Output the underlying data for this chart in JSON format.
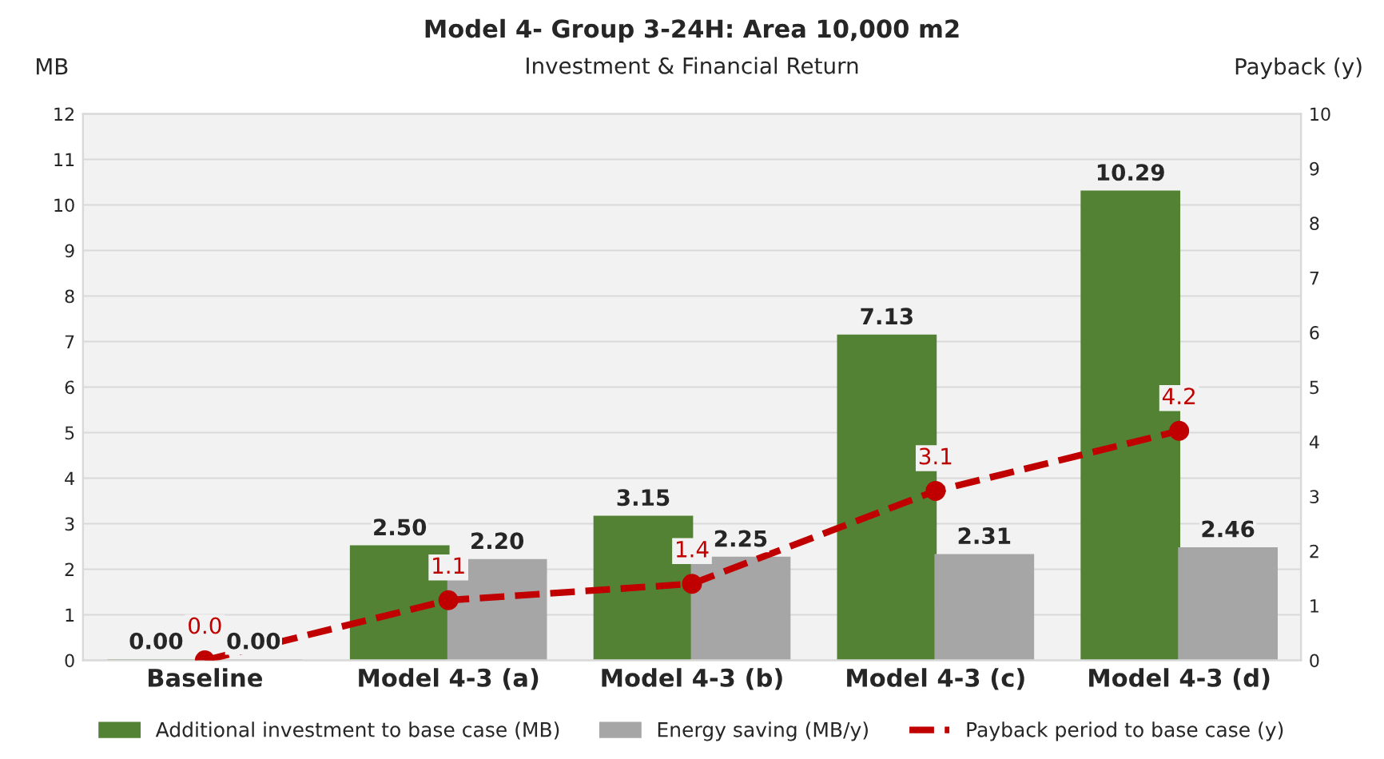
{
  "chart_data": {
    "type": "bar",
    "title": "Model 4- Group 3-24H: Area 10,000 m2",
    "subtitle": "Investment & Financial Return",
    "ylabel": "MB",
    "y2label": "Payback (y)",
    "categories": [
      "Baseline",
      "Model 4-3 (a)",
      "Model 4-3 (b)",
      "Model 4-3 (c)",
      "Model 4-3 (d)"
    ],
    "series": [
      {
        "name": "Additional investment to base case (MB)",
        "color": "#548235",
        "values": [
          0.0,
          2.5,
          3.15,
          7.13,
          10.29
        ],
        "value_labels": [
          "0.00",
          "2.50",
          "3.15",
          "7.13",
          "10.29"
        ]
      },
      {
        "name": "Energy saving (MB/y)",
        "color": "#a6a6a6",
        "values": [
          0.0,
          2.2,
          2.25,
          2.31,
          2.46
        ],
        "value_labels": [
          "0.00",
          "2.20",
          "2.25",
          "2.31",
          "2.46"
        ]
      },
      {
        "name": "Payback period to base case (y)",
        "type": "line",
        "axis": "y2",
        "color": "#c00000",
        "marker": "circle",
        "line_style": "dashed",
        "values": [
          0.0,
          1.1,
          1.4,
          3.1,
          4.2
        ],
        "value_labels": [
          "0.0",
          "1.1",
          "1.4",
          "3.1",
          "4.2"
        ]
      }
    ],
    "ylim": [
      0,
      12
    ],
    "yticks": [
      0,
      1,
      2,
      3,
      4,
      5,
      6,
      7,
      8,
      9,
      10,
      11,
      12
    ],
    "y2lim": [
      0,
      10
    ],
    "y2ticks": [
      0,
      1,
      2,
      3,
      4,
      5,
      6,
      7,
      8,
      9,
      10
    ],
    "grid": "y",
    "legend": "bottom"
  }
}
